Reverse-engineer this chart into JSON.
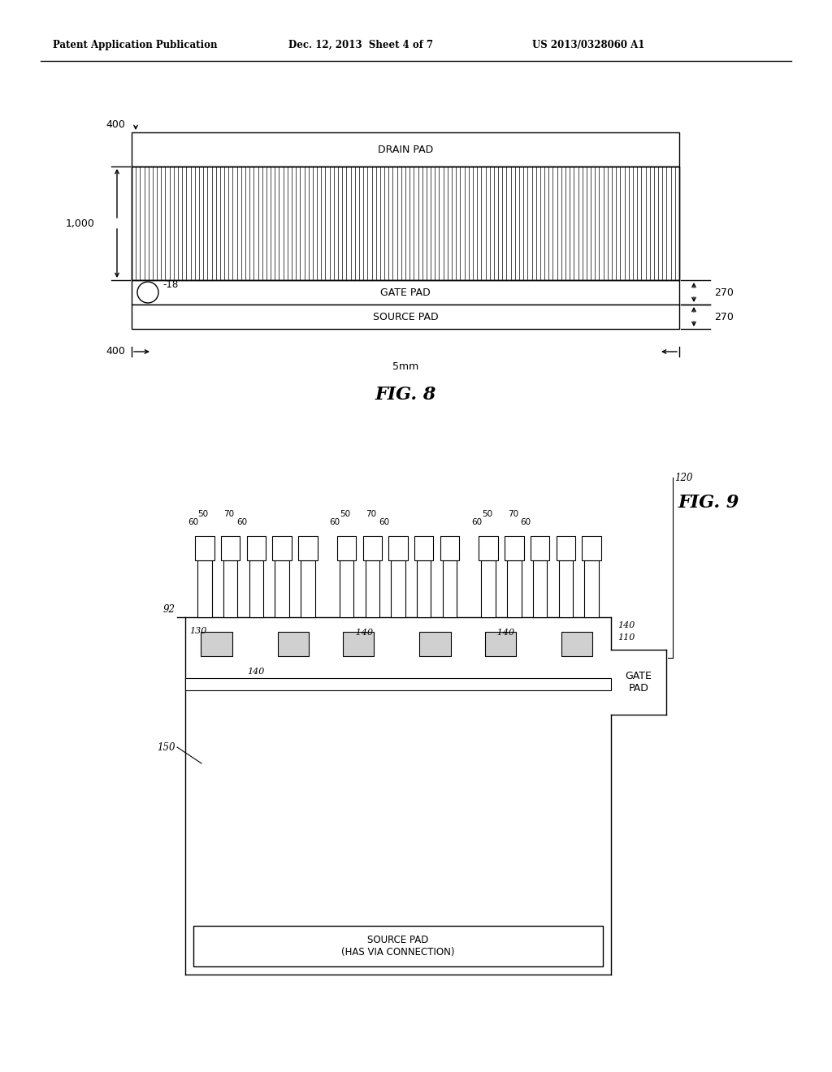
{
  "header_left": "Patent Application Publication",
  "header_mid": "Dec. 12, 2013  Sheet 4 of 7",
  "header_right": "US 2013/0328060 A1",
  "fig8_label": "FIG. 8",
  "fig9_label": "FIG. 9",
  "bg_color": "#ffffff",
  "line_color": "#000000",
  "fig8": {
    "drain_pad_label": "DRAIN PAD",
    "gate_pad_label": "GATE PAD",
    "source_pad_label": "SOURCE PAD",
    "label_400_top": "400",
    "label_400_bot": "400",
    "label_1000": "1,000",
    "label_270_top": "270",
    "label_270_bot": "270",
    "label_18": "-18",
    "label_5mm": "5mm"
  },
  "fig9": {
    "label_92": "92",
    "label_130": "130",
    "label_140a": "140",
    "label_140b": "-140",
    "label_140c": "-140",
    "label_140d": "-140",
    "label_140e": "140",
    "label_110": "110",
    "label_120": "120",
    "label_150": "150",
    "gate_pad_label": "GATE\nPAD",
    "source_pad_label": "SOURCE PAD\n(HAS VIA CONNECTION)"
  }
}
